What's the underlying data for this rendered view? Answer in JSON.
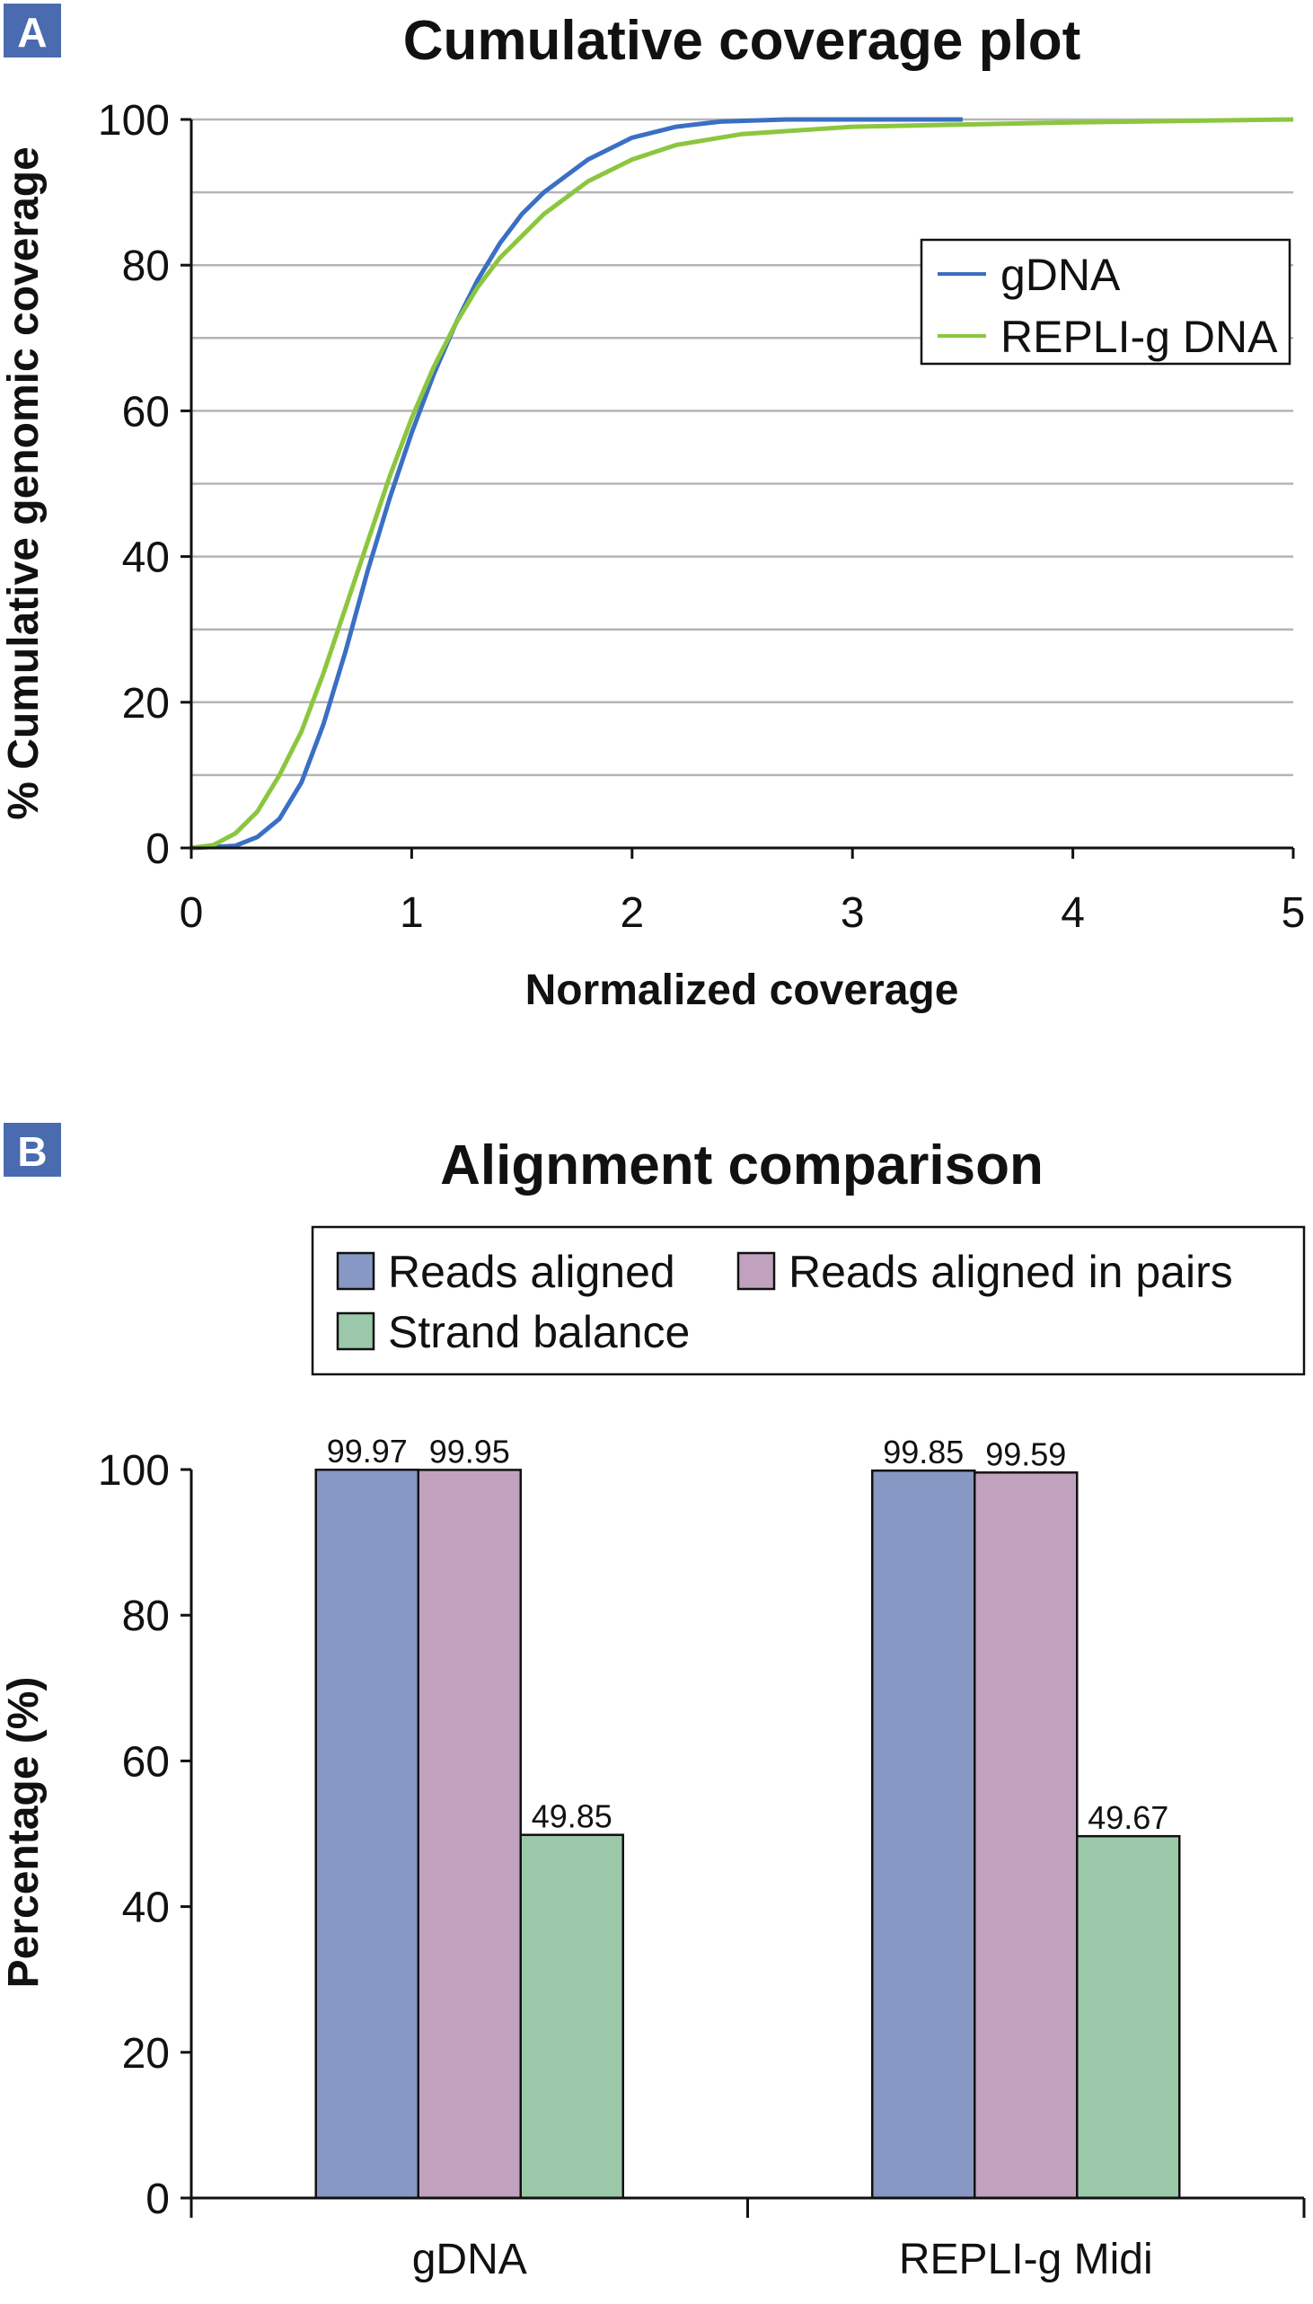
{
  "panels": {
    "a": {
      "badge": "A"
    },
    "b": {
      "badge": "B"
    }
  },
  "chart_data": [
    {
      "type": "line",
      "title": "Cumulative coverage plot",
      "xlabel": "Normalized coverage",
      "ylabel": "% Cumulative genomic coverage",
      "xlim": [
        0,
        5
      ],
      "ylim": [
        0,
        100
      ],
      "x_ticks": [
        "0",
        "1",
        "2",
        "3",
        "4",
        "5"
      ],
      "y_ticks": [
        "0",
        "20",
        "40",
        "60",
        "80",
        "100"
      ],
      "grid": true,
      "legend": "right",
      "series": [
        {
          "name": "gDNA",
          "color": "#3b6fc4",
          "points": [
            [
              0,
              0
            ],
            [
              0.2,
              0.3
            ],
            [
              0.3,
              1.5
            ],
            [
              0.4,
              4
            ],
            [
              0.5,
              9
            ],
            [
              0.6,
              17
            ],
            [
              0.7,
              27
            ],
            [
              0.8,
              38
            ],
            [
              0.9,
              48
            ],
            [
              1.0,
              57
            ],
            [
              1.1,
              65
            ],
            [
              1.2,
              72
            ],
            [
              1.3,
              78
            ],
            [
              1.4,
              83
            ],
            [
              1.5,
              87
            ],
            [
              1.6,
              90
            ],
            [
              1.8,
              94.5
            ],
            [
              2.0,
              97.5
            ],
            [
              2.2,
              99
            ],
            [
              2.4,
              99.7
            ],
            [
              2.7,
              100
            ],
            [
              3.5,
              100
            ]
          ]
        },
        {
          "name": "REPLI-g DNA",
          "color": "#8cc63f",
          "points": [
            [
              0,
              0
            ],
            [
              0.1,
              0.4
            ],
            [
              0.2,
              2
            ],
            [
              0.3,
              5
            ],
            [
              0.4,
              10
            ],
            [
              0.5,
              16
            ],
            [
              0.6,
              24
            ],
            [
              0.7,
              33
            ],
            [
              0.8,
              42
            ],
            [
              0.9,
              51
            ],
            [
              1.0,
              59
            ],
            [
              1.1,
              66
            ],
            [
              1.2,
              72
            ],
            [
              1.3,
              77
            ],
            [
              1.4,
              81
            ],
            [
              1.5,
              84
            ],
            [
              1.6,
              87
            ],
            [
              1.8,
              91.5
            ],
            [
              2.0,
              94.5
            ],
            [
              2.2,
              96.5
            ],
            [
              2.5,
              98
            ],
            [
              3.0,
              99
            ],
            [
              4.0,
              99.6
            ],
            [
              5.0,
              100
            ]
          ]
        }
      ]
    },
    {
      "type": "bar",
      "title": "Alignment comparison",
      "ylabel": "Percentage (%)",
      "ylim": [
        0,
        100
      ],
      "y_ticks": [
        "0",
        "20",
        "40",
        "60",
        "80",
        "100"
      ],
      "categories": [
        "gDNA",
        "REPLI-g Midi"
      ],
      "legend": "top",
      "series": [
        {
          "name": "Reads aligned",
          "color": "#8898c4",
          "values": [
            99.97,
            99.85
          ],
          "labels": [
            "99.97",
            "99.85"
          ]
        },
        {
          "name": "Reads aligned in pairs",
          "color": "#c0a2bf",
          "values": [
            99.95,
            99.59
          ],
          "labels": [
            "99.95",
            "99.59"
          ]
        },
        {
          "name": "Strand balance",
          "color": "#9cc8aa",
          "values": [
            49.85,
            49.67
          ],
          "labels": [
            "49.85",
            "49.67"
          ]
        }
      ]
    }
  ]
}
